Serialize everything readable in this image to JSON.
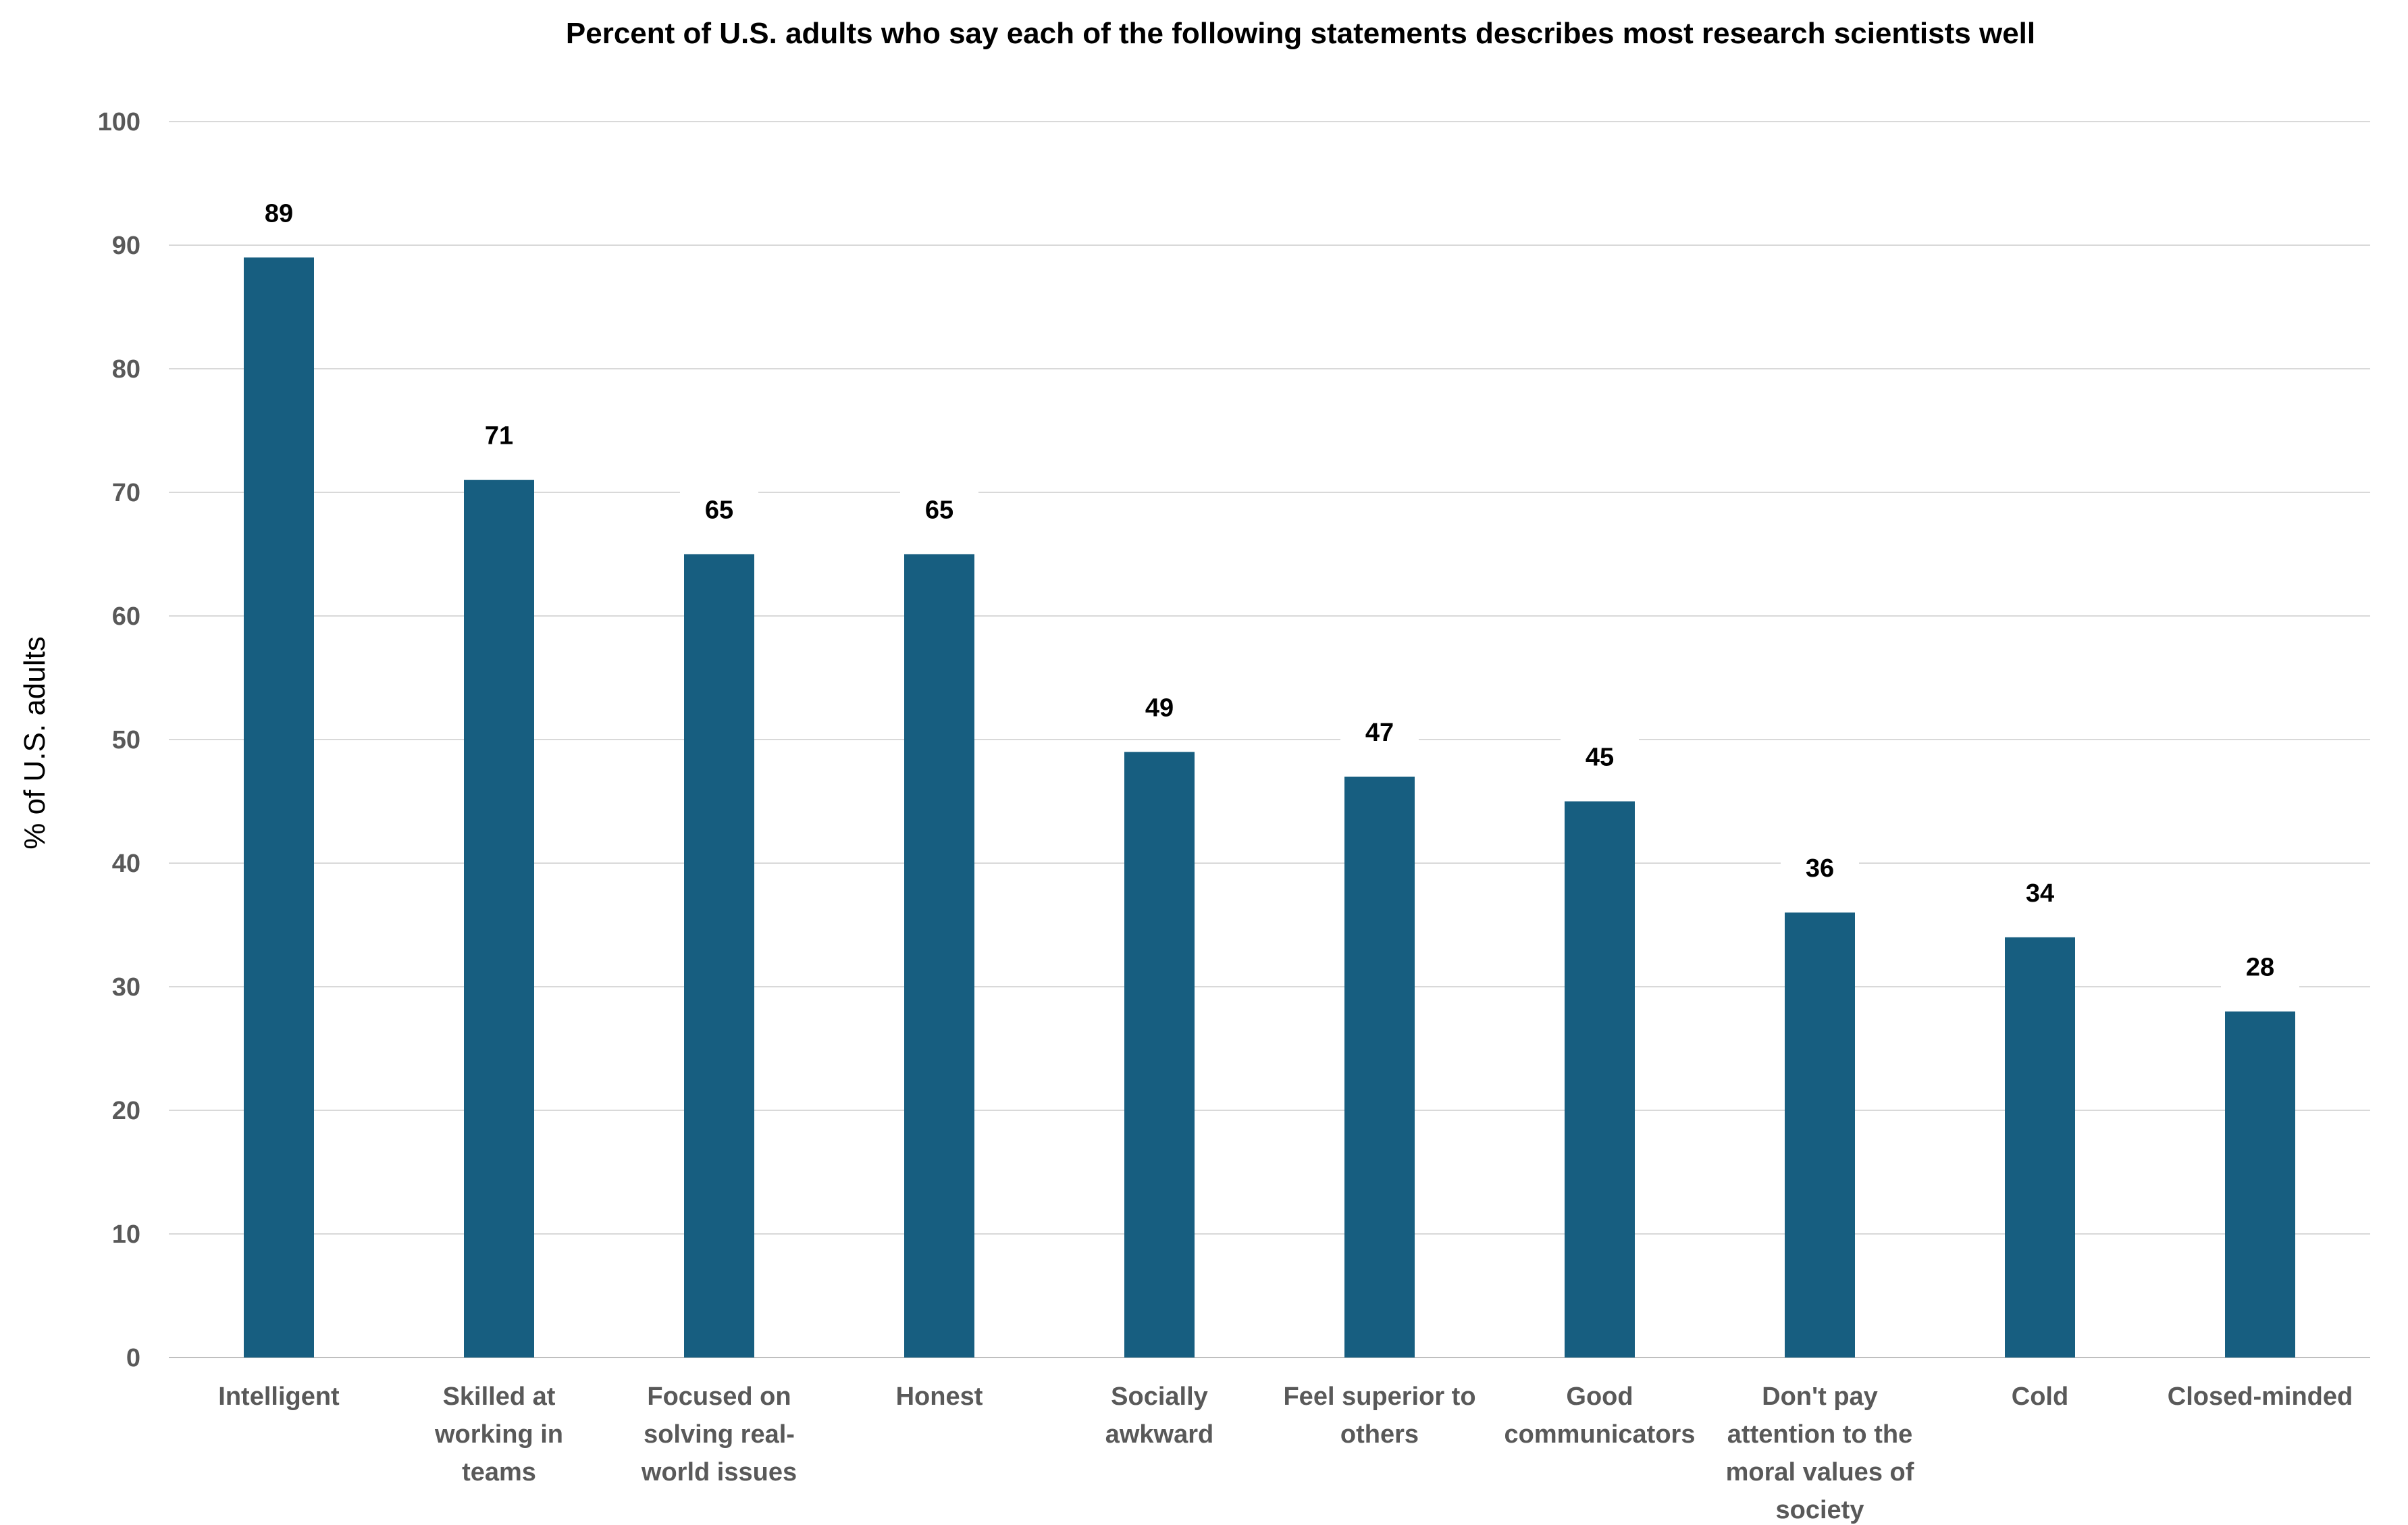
{
  "chart_data": {
    "type": "bar",
    "title": "Percent of U.S. adults who say each of the following statements describes most research scientists well",
    "xlabel": "",
    "ylabel": "% of U.S. adults",
    "ylim": [
      0,
      100
    ],
    "yticks": [
      "0",
      "10",
      "20",
      "30",
      "40",
      "50",
      "60",
      "70",
      "80",
      "90",
      "100"
    ],
    "grid": true,
    "legend": "none",
    "bar_color": "#175E80",
    "categories": [
      [
        "Intelligent"
      ],
      [
        "Skilled at",
        "working in",
        "teams"
      ],
      [
        "Focused on",
        "solving real-",
        "world issues"
      ],
      [
        "Honest"
      ],
      [
        "Socially",
        "awkward"
      ],
      [
        "Feel superior to",
        "others"
      ],
      [
        "Good",
        "communicators"
      ],
      [
        "Don't pay",
        "attention to the",
        "moral values of",
        "society"
      ],
      [
        "Cold"
      ],
      [
        "Closed-minded"
      ]
    ],
    "values": [
      89,
      71,
      65,
      65,
      49,
      47,
      45,
      36,
      34,
      28
    ],
    "data_labels": [
      "89",
      "71",
      "65",
      "65",
      "49",
      "47",
      "45",
      "36",
      "34",
      "28"
    ]
  }
}
